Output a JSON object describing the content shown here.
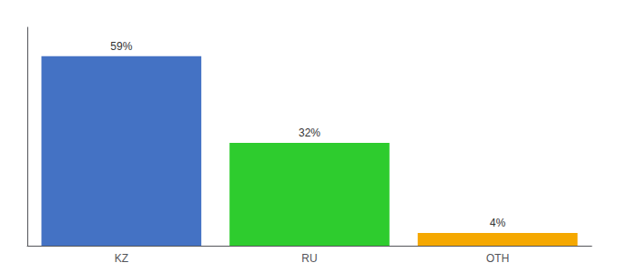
{
  "chart_data": {
    "type": "bar",
    "categories": [
      "KZ",
      "RU",
      "OTH"
    ],
    "values": [
      59,
      32,
      4
    ],
    "value_labels": [
      "59%",
      "32%",
      "4%"
    ],
    "colors": [
      "#4472c4",
      "#2ecc2e",
      "#f5a800"
    ],
    "data_labels": true,
    "ylim": [
      0,
      68
    ],
    "grid": false,
    "tick_labels": "x"
  }
}
